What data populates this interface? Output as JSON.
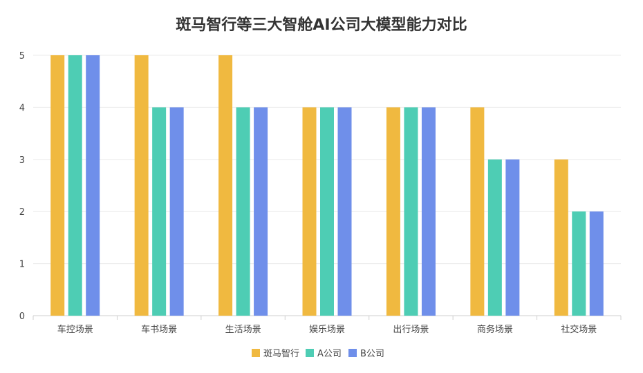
{
  "chart_data": {
    "type": "bar",
    "title": "斑马智行等三大智舱AI公司大模型能力对比",
    "xlabel": "",
    "ylabel": "",
    "ylim": [
      0,
      5
    ],
    "yticks": [
      0,
      1,
      2,
      3,
      4,
      5
    ],
    "grid": true,
    "legend_position": "bottom",
    "categories": [
      "车控场景",
      "车书场景",
      "生活场景",
      "娱乐场景",
      "出行场景",
      "商务场景",
      "社交场景"
    ],
    "series": [
      {
        "name": "斑马智行",
        "color": "#F0B940",
        "values": [
          5,
          5,
          5,
          4,
          4,
          4,
          3
        ]
      },
      {
        "name": "A公司",
        "color": "#4ECDB4",
        "values": [
          5,
          4,
          4,
          4,
          4,
          3,
          2
        ]
      },
      {
        "name": "B公司",
        "color": "#6F8FEA",
        "values": [
          5,
          4,
          4,
          4,
          4,
          3,
          2
        ]
      }
    ]
  }
}
